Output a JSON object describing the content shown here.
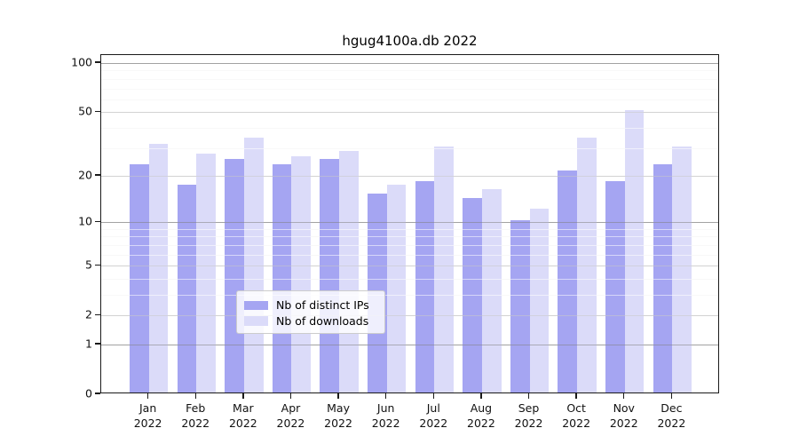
{
  "chart_data": {
    "type": "bar",
    "title": "hgug4100a.db 2022",
    "categories": [
      "Jan",
      "Feb",
      "Mar",
      "Apr",
      "May",
      "Jun",
      "Jul",
      "Aug",
      "Sep",
      "Oct",
      "Nov",
      "Dec"
    ],
    "x_year_label": "2022",
    "series": [
      {
        "name": "Nb of distinct IPs",
        "color": "#a5a5f2",
        "values": [
          23,
          17,
          25,
          23,
          25,
          15,
          18,
          14,
          10,
          21,
          18,
          23
        ]
      },
      {
        "name": "Nb of downloads",
        "color": "#dbdbf9",
        "values": [
          31,
          27,
          34,
          26,
          28,
          17,
          30,
          16,
          12,
          34,
          50,
          30
        ]
      }
    ],
    "y_scale": "log10(1+v)",
    "y_axis_top_value": 112,
    "y_ticks": [
      0,
      1,
      2,
      5,
      10,
      20,
      50,
      100
    ],
    "y_ticks_emphasized": [
      1,
      10,
      100
    ],
    "y_minor_ticks": [
      3,
      4,
      6,
      7,
      8,
      9,
      30,
      40,
      60,
      70,
      80,
      90
    ],
    "grid": true,
    "legend_position": "lower center",
    "colors": {
      "grid_minor": "#ebebeb",
      "grid_major": "#c8c8c8",
      "grid_major_emphasized": "#9c9c9c",
      "axis": "#1a1a1a",
      "background": "#ffffff"
    }
  }
}
